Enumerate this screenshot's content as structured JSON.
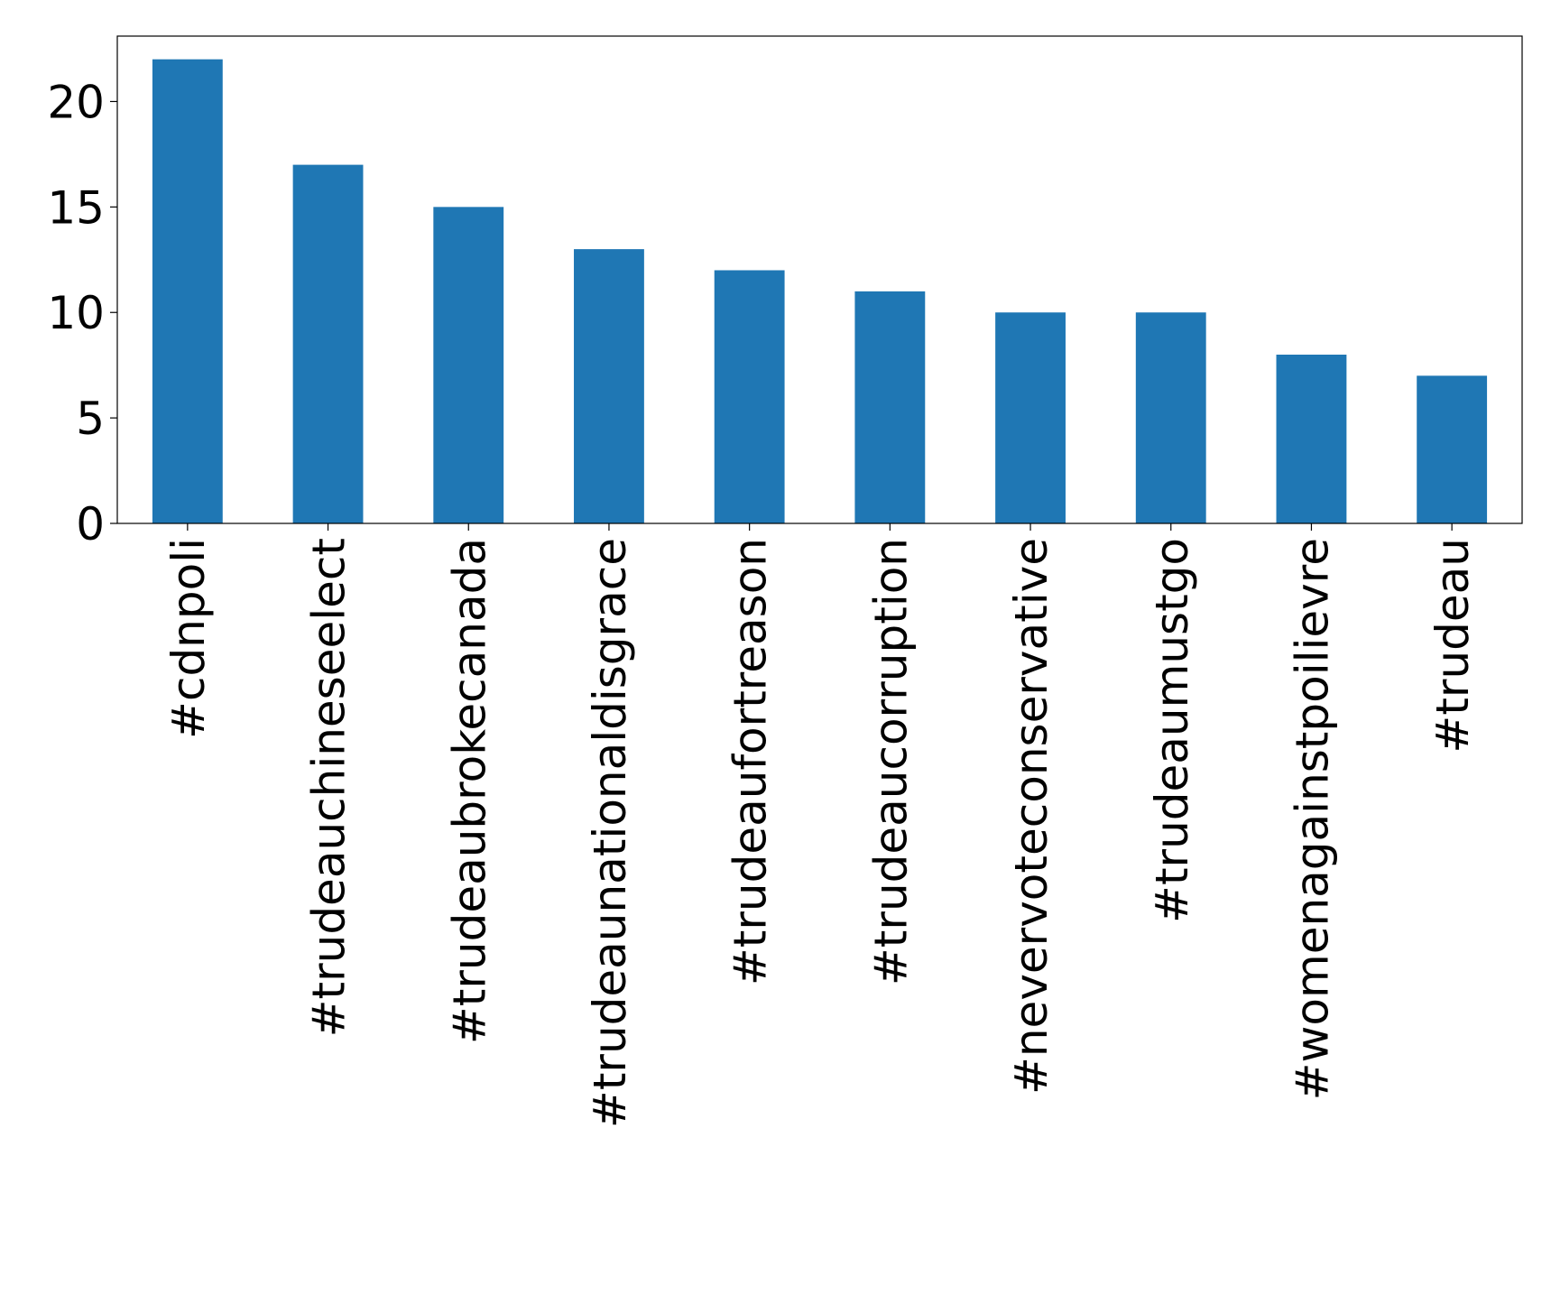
{
  "chart_data": {
    "type": "bar",
    "categories": [
      "#cdnpoli",
      "#trudeauchineseelect",
      "#trudeaubrokecanada",
      "#trudeaunationaldisgrace",
      "#trudeaufortreason",
      "#trudeaucorruption",
      "#nevervoteconservative",
      "#trudeaumustgo",
      "#womenagainstpoilievre",
      "#trudeau"
    ],
    "values": [
      22,
      17,
      15,
      13,
      12,
      11,
      10,
      10,
      8,
      7
    ],
    "color": "#1f77b4",
    "ylim": [
      0,
      23.1
    ],
    "yticks": [
      0,
      5,
      10,
      15,
      20
    ],
    "grid": false
  }
}
